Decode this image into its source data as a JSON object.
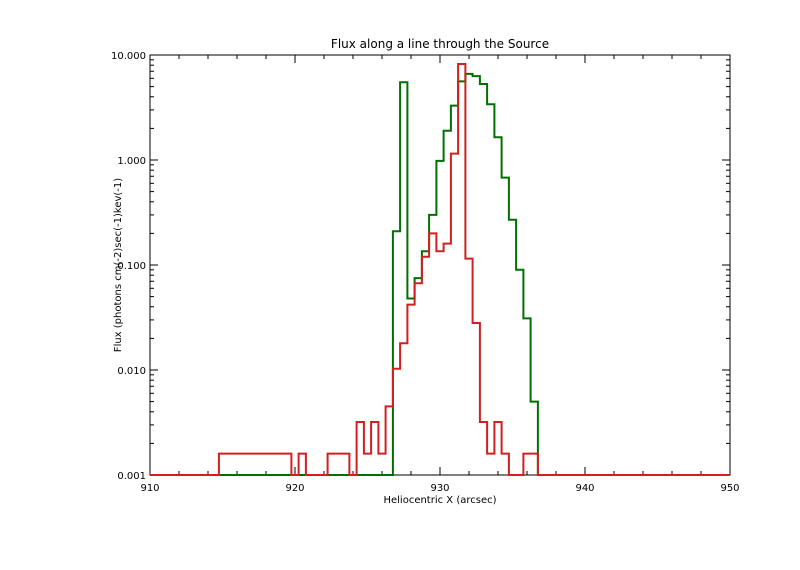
{
  "chart_data": {
    "type": "line",
    "title": "Flux along a line through the Source",
    "xlabel": "Heliocentric X (arcsec)",
    "ylabel": "Flux (photons cm(-2)sec(-1)kev(-1)",
    "xlim": [
      910,
      950
    ],
    "ylim": [
      0.001,
      10.0
    ],
    "yscale": "log",
    "x_ticks": [
      910,
      920,
      930,
      940,
      950
    ],
    "x_tick_labels": [
      "910",
      "920",
      "930",
      "940",
      "950"
    ],
    "y_ticks": [
      0.001,
      0.01,
      0.1,
      1.0,
      10.0
    ],
    "y_tick_labels": [
      "0.001",
      "0.010",
      "0.100",
      "1.000",
      "10.000"
    ],
    "grid": false,
    "step": "mid",
    "series": [
      {
        "color": "#007000",
        "x": [
          910,
          926.5,
          927.0,
          927.5,
          928.0,
          928.5,
          929.0,
          929.5,
          930.0,
          930.5,
          931.0,
          931.5,
          932.0,
          932.5,
          933.0,
          933.5,
          934.0,
          934.5,
          935.0,
          935.5,
          936.0,
          936.5,
          937.0,
          950
        ],
        "y": [
          0.001,
          0.001,
          0.21,
          5.5,
          0.048,
          0.075,
          0.135,
          0.3,
          0.98,
          1.9,
          3.3,
          5.6,
          6.6,
          6.3,
          5.3,
          3.4,
          1.65,
          0.68,
          0.27,
          0.09,
          0.031,
          0.005,
          0.001,
          0.001
        ]
      },
      {
        "color": "#d02020",
        "x": [
          910,
          919.5,
          920.0,
          920.5,
          921.0,
          923.5,
          924.0,
          924.5,
          925.0,
          925.5,
          926.0,
          926.5,
          927.0,
          927.5,
          928.0,
          928.5,
          929.0,
          929.5,
          930.0,
          930.5,
          931.0,
          931.5,
          932.0,
          932.5,
          933.0,
          933.5,
          934.0,
          934.5,
          935.0,
          936.5,
          937.0,
          950
        ],
        "y": [
          0.001,
          0.0016,
          0.001,
          0.0016,
          0.001,
          0.0016,
          0.001,
          0.0032,
          0.0016,
          0.0032,
          0.0016,
          0.0045,
          0.0103,
          0.018,
          0.042,
          0.067,
          0.12,
          0.2,
          0.135,
          0.16,
          1.15,
          8.2,
          0.115,
          0.028,
          0.0032,
          0.0016,
          0.0032,
          0.0016,
          0.001,
          0.0016,
          0.001,
          0.001
        ]
      }
    ]
  }
}
